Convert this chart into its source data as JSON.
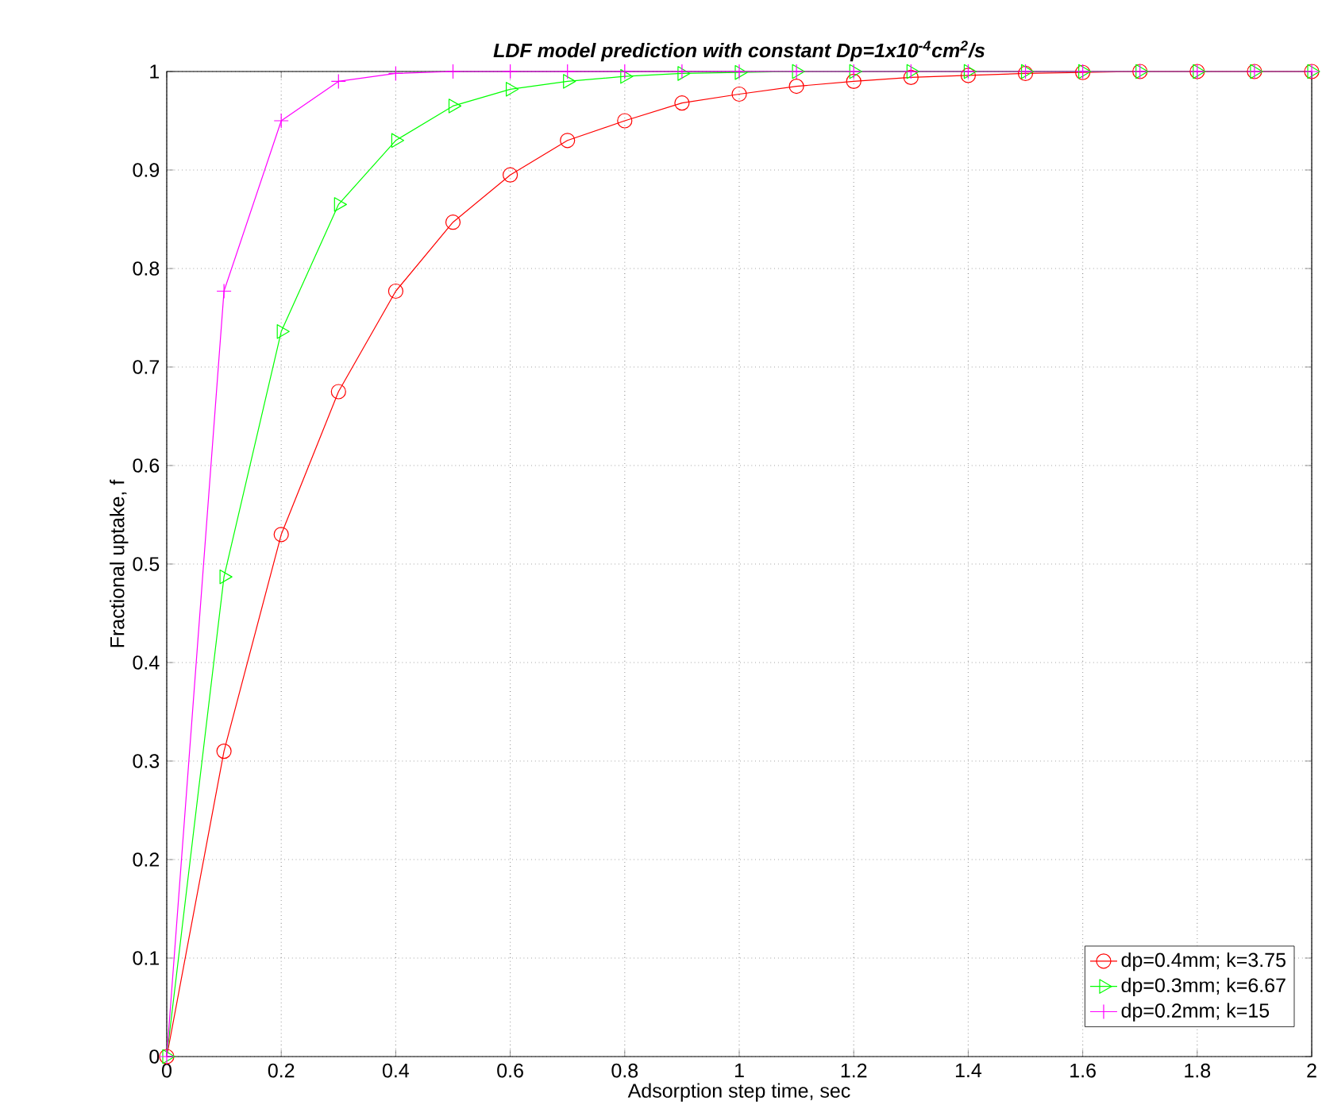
{
  "chart_data": {
    "type": "line",
    "title": "LDF model prediction with constant Dp=1x10$^{-4}$cm$^{2}$/s",
    "xlabel": "Adsorption step time, sec",
    "ylabel": "Fractional uptake, f",
    "x": [
      0,
      0.1,
      0.2,
      0.3,
      0.4,
      0.5,
      0.6,
      0.7,
      0.8,
      0.9,
      1.0,
      1.1,
      1.2,
      1.3,
      1.4,
      1.5,
      1.6,
      1.7,
      1.8,
      1.9,
      2.0
    ],
    "series": [
      {
        "name": "dp=0.4mm; k=3.75",
        "color": "#ff0000",
        "marker": "circle",
        "values": [
          0,
          0.31,
          0.53,
          0.675,
          0.777,
          0.847,
          0.895,
          0.93,
          0.95,
          0.968,
          0.977,
          0.985,
          0.99,
          0.994,
          0.996,
          0.998,
          0.999,
          1,
          1,
          1,
          1
        ]
      },
      {
        "name": "dp=0.3mm; k=6.67",
        "color": "#00ff00",
        "marker": "triangle",
        "values": [
          0,
          0.487,
          0.736,
          0.865,
          0.93,
          0.965,
          0.982,
          0.99,
          0.995,
          0.998,
          0.999,
          1,
          1,
          1,
          1,
          1,
          1,
          1,
          1,
          1,
          1
        ]
      },
      {
        "name": "dp=0.2mm; k=15",
        "color": "#ff00ff",
        "marker": "cross",
        "values": [
          0,
          0.777,
          0.95,
          0.99,
          0.998,
          1,
          1,
          1,
          1,
          1,
          1,
          1,
          1,
          1,
          1,
          1,
          1,
          1,
          1,
          1,
          1
        ]
      }
    ],
    "xlim": [
      0,
      2
    ],
    "ylim": [
      0,
      1
    ],
    "xticks": [
      0,
      0.2,
      0.4,
      0.6,
      0.8,
      1,
      1.2,
      1.4,
      1.6,
      1.8,
      2
    ],
    "yticks": [
      0,
      0.1,
      0.2,
      0.3,
      0.4,
      0.5,
      0.6,
      0.7,
      0.8,
      0.9,
      1
    ],
    "grid": true,
    "legend": "bottom right",
    "line_style": "solid"
  }
}
